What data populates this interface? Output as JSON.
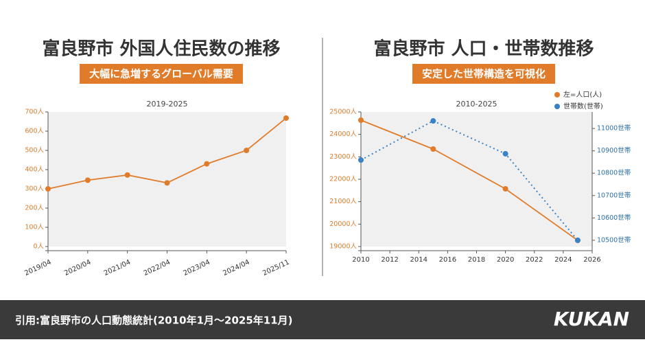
{
  "chart_data": [
    {
      "type": "line",
      "title": "富良野市 外国人住民数の推移",
      "subtitle": "大幅に急増するグローバル需要",
      "period": "2019-2025",
      "categories": [
        "2019/04",
        "2020/04",
        "2021/04",
        "2022/04",
        "2023/04",
        "2024/04",
        "2025/11"
      ],
      "series": [
        {
          "color": "#e07b2a",
          "values": [
            300,
            345,
            372,
            331,
            430,
            500,
            668
          ]
        }
      ],
      "ylim": [
        0,
        700
      ],
      "yticks": [
        {
          "value": 0,
          "label": "0人"
        },
        {
          "value": 100,
          "label": "100人"
        },
        {
          "value": 200,
          "label": "200人"
        },
        {
          "value": 300,
          "label": "300人"
        },
        {
          "value": 400,
          "label": "400人"
        },
        {
          "value": 500,
          "label": "500人"
        },
        {
          "value": 600,
          "label": "600人"
        },
        {
          "value": 700,
          "label": "700人"
        }
      ],
      "grid": false
    },
    {
      "type": "line",
      "title": "富良野市 人口・世帯数推移",
      "subtitle": "安定した世帯構造を可視化",
      "period": "2010-2025",
      "x": [
        2010,
        2015,
        2020,
        2025
      ],
      "series": [
        {
          "name": "左=人口(人)",
          "color": "#e07b2a",
          "values": [
            24633,
            23347,
            21572,
            19275
          ]
        },
        {
          "name": "世帯数(世帯)",
          "color": "#3b82c4",
          "axis": "y2",
          "values": [
            10859,
            11034,
            10887,
            10500
          ]
        }
      ],
      "xlim": [
        2010,
        2026
      ],
      "xticks": [
        2010,
        2012,
        2014,
        2016,
        2018,
        2020,
        2022,
        2024,
        2026
      ],
      "ylim": [
        19000,
        25000
      ],
      "yticks": [
        {
          "value": 19000,
          "label": "19000人"
        },
        {
          "value": 20000,
          "label": "20000人"
        },
        {
          "value": 21000,
          "label": "21000人"
        },
        {
          "value": 22000,
          "label": "22000人"
        },
        {
          "value": 23000,
          "label": "23000人"
        },
        {
          "value": 24000,
          "label": "24000人"
        },
        {
          "value": 25000,
          "label": "25000人"
        }
      ],
      "y2lim": [
        10472,
        11074
      ],
      "y2ticks": [
        {
          "value": 10500,
          "label": "10500世帯"
        },
        {
          "value": 10600,
          "label": "10600世帯"
        },
        {
          "value": 10700,
          "label": "10700世帯"
        },
        {
          "value": 10800,
          "label": "10800世帯"
        },
        {
          "value": 10900,
          "label": "10900世帯"
        },
        {
          "value": 11000,
          "label": "11000世帯"
        }
      ],
      "grid": false,
      "legend": "top-right"
    }
  ],
  "footer": {
    "source": "引用:富良野市の人口動態統計(2010年1月〜2025年11月)",
    "logo": "KUKAN"
  }
}
